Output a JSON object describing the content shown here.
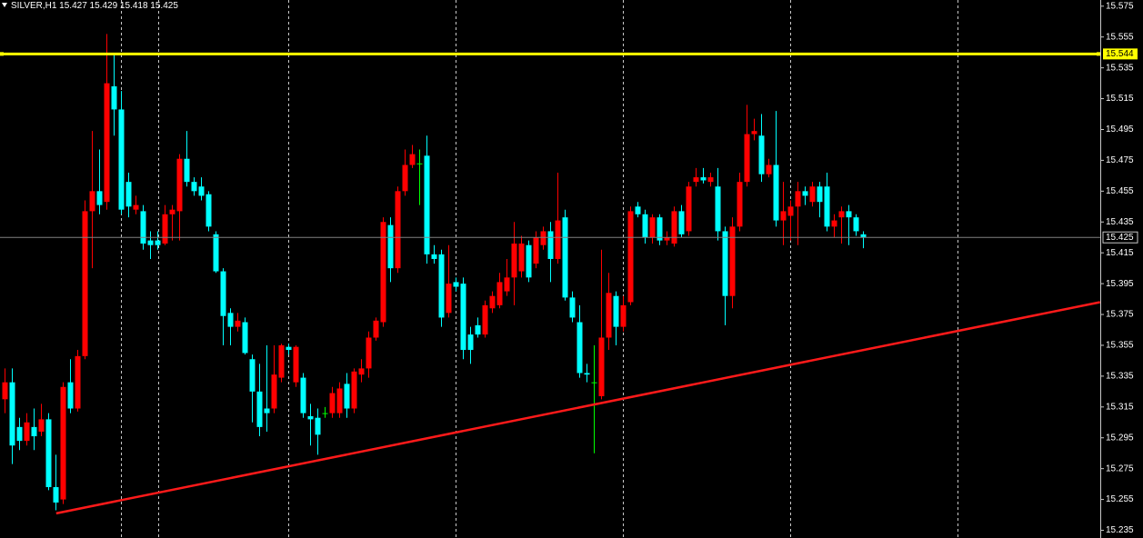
{
  "chart_data": {
    "type": "candlestick",
    "title": "SILVER,H1",
    "ylim": [
      15.23,
      15.579
    ],
    "yticks": [
      15.575,
      15.555,
      15.535,
      15.515,
      15.495,
      15.475,
      15.455,
      15.435,
      15.415,
      15.395,
      15.375,
      15.355,
      15.335,
      15.315,
      15.295,
      15.275,
      15.255,
      15.235
    ],
    "up_color": "#ff0000",
    "down_color": "#00ffff",
    "doji_color": "#00ff00",
    "open": [
      15.32,
      15.331,
      15.302,
      15.293,
      15.302,
      15.299,
      15.307,
      15.263,
      15.255,
      15.331,
      15.314,
      15.348,
      15.442,
      15.455,
      15.448,
      15.523,
      15.508,
      15.461,
      15.443,
      15.442,
      15.423,
      15.423,
      15.421,
      15.44,
      15.442,
      15.476,
      15.461,
      15.458,
      15.453,
      15.427,
      15.403,
      15.376,
      15.367,
      15.37,
      15.346,
      15.325,
      15.314,
      15.314,
      15.334,
      15.354,
      15.331,
      15.334,
      15.309,
      15.308,
      15.311,
      15.311,
      15.311,
      15.33,
      15.314,
      15.336,
      15.34,
      15.36,
      15.37,
      15.433,
      15.405,
      15.455,
      15.472,
      15.473,
      15.478,
      15.414,
      15.414,
      15.376,
      15.396,
      15.395,
      15.362,
      15.368,
      15.362,
      15.379,
      15.381,
      15.39,
      15.399,
      15.403,
      15.42,
      15.408,
      15.42,
      15.429,
      15.411,
      15.438,
      15.386,
      15.37,
      15.337,
      15.331,
      15.322,
      15.36,
      15.387,
      15.367,
      15.383,
      15.445,
      15.44,
      15.425,
      15.438,
      15.423,
      15.421,
      15.442,
      15.429,
      15.461,
      15.464,
      15.461,
      15.458,
      15.429,
      15.387,
      15.432,
      15.461,
      15.492,
      15.491,
      15.466,
      15.472,
      15.436,
      15.439,
      15.445,
      15.455,
      15.448,
      15.458,
      15.458,
      15.432,
      15.438,
      15.442,
      15.438,
      15.427
    ],
    "high": [
      15.34,
      15.34,
      15.308,
      15.311,
      15.314,
      15.317,
      15.311,
      15.284,
      15.331,
      15.346,
      15.352,
      15.449,
      15.494,
      15.482,
      15.557,
      15.544,
      15.52,
      15.467,
      15.452,
      15.446,
      15.429,
      15.429,
      15.446,
      15.446,
      15.479,
      15.494,
      15.464,
      15.464,
      15.455,
      15.429,
      15.405,
      15.379,
      15.376,
      15.373,
      15.349,
      15.343,
      15.355,
      15.355,
      15.356,
      15.356,
      15.355,
      15.337,
      15.317,
      15.314,
      15.315,
      15.328,
      15.331,
      15.337,
      15.34,
      15.346,
      15.364,
      15.373,
      15.438,
      15.438,
      15.458,
      15.482,
      15.485,
      15.482,
      15.491,
      15.42,
      15.417,
      15.42,
      15.399,
      15.399,
      15.367,
      15.373,
      15.384,
      15.39,
      15.402,
      15.411,
      15.435,
      15.426,
      15.423,
      15.429,
      15.432,
      15.435,
      15.467,
      15.443,
      15.39,
      15.381,
      15.343,
      15.355,
      15.417,
      15.402,
      15.39,
      15.387,
      15.445,
      15.448,
      15.443,
      15.44,
      15.44,
      15.429,
      15.445,
      15.446,
      15.461,
      15.47,
      15.47,
      15.467,
      15.47,
      15.432,
      15.438,
      15.467,
      15.511,
      15.502,
      15.505,
      15.476,
      15.507,
      15.461,
      15.449,
      15.461,
      15.458,
      15.461,
      15.461,
      15.467,
      15.44,
      15.445,
      15.446,
      15.44,
      15.429
    ],
    "low": [
      15.311,
      15.278,
      15.287,
      15.29,
      15.287,
      15.296,
      15.261,
      15.248,
      15.252,
      15.311,
      15.312,
      15.346,
      15.405,
      15.44,
      15.443,
      15.491,
      15.44,
      15.438,
      15.44,
      15.417,
      15.411,
      15.417,
      15.42,
      15.423,
      15.423,
      15.458,
      15.452,
      15.449,
      15.429,
      15.402,
      15.355,
      15.355,
      15.364,
      15.349,
      15.305,
      15.296,
      15.299,
      15.311,
      15.331,
      15.349,
      15.328,
      15.308,
      15.29,
      15.284,
      15.308,
      15.308,
      15.308,
      15.308,
      15.311,
      15.331,
      15.334,
      15.358,
      15.367,
      15.396,
      15.402,
      15.452,
      15.47,
      15.446,
      15.408,
      15.408,
      15.367,
      15.373,
      15.39,
      15.346,
      15.343,
      15.36,
      15.36,
      15.376,
      15.379,
      15.387,
      15.381,
      15.399,
      15.396,
      15.405,
      15.417,
      15.396,
      15.408,
      15.384,
      15.37,
      15.334,
      15.331,
      15.285,
      15.32,
      15.352,
      15.355,
      15.364,
      15.381,
      15.438,
      15.421,
      15.421,
      15.42,
      15.42,
      15.419,
      15.425,
      15.426,
      15.458,
      15.46,
      15.458,
      15.423,
      15.368,
      15.379,
      15.429,
      15.458,
      15.488,
      15.461,
      15.464,
      15.432,
      15.42,
      15.423,
      15.42,
      15.446,
      15.445,
      15.438,
      15.429,
      15.425,
      15.421,
      15.42,
      15.426,
      15.418
    ],
    "close": [
      15.331,
      15.29,
      15.293,
      15.305,
      15.296,
      15.307,
      15.263,
      15.253,
      15.328,
      15.314,
      15.348,
      15.442,
      15.455,
      15.446,
      15.525,
      15.508,
      15.443,
      15.445,
      15.446,
      15.421,
      15.42,
      15.42,
      15.44,
      15.443,
      15.476,
      15.461,
      15.455,
      15.452,
      15.432,
      15.403,
      15.374,
      15.367,
      15.371,
      15.35,
      15.325,
      15.302,
      15.311,
      15.336,
      15.355,
      15.352,
      15.354,
      15.311,
      15.307,
      15.297,
      15.311,
      15.324,
      15.327,
      15.314,
      15.338,
      15.34,
      15.36,
      15.371,
      15.435,
      15.405,
      15.455,
      15.472,
      15.479,
      15.473,
      15.414,
      15.411,
      15.373,
      15.395,
      15.393,
      15.352,
      15.352,
      15.362,
      15.381,
      15.387,
      15.396,
      15.399,
      15.421,
      15.421,
      15.399,
      15.425,
      15.429,
      15.411,
      15.436,
      15.386,
      15.373,
      15.337,
      15.336,
      15.331,
      15.36,
      15.389,
      15.367,
      15.381,
      15.442,
      15.44,
      15.425,
      15.438,
      15.423,
      15.425,
      15.442,
      15.427,
      15.458,
      15.464,
      15.462,
      15.464,
      15.429,
      15.387,
      15.432,
      15.461,
      15.492,
      15.494,
      15.466,
      15.472,
      15.436,
      15.442,
      15.445,
      15.455,
      15.452,
      15.458,
      15.448,
      15.432,
      15.436,
      15.442,
      15.438,
      15.429,
      15.425
    ],
    "hline": {
      "value": 15.544,
      "label": "15.544",
      "color": "#ffff00"
    },
    "trendline": {
      "x": [
        7.1,
        150.6
      ],
      "y": [
        15.246,
        15.383
      ],
      "color": "#ff1a1a"
    }
  }
}
